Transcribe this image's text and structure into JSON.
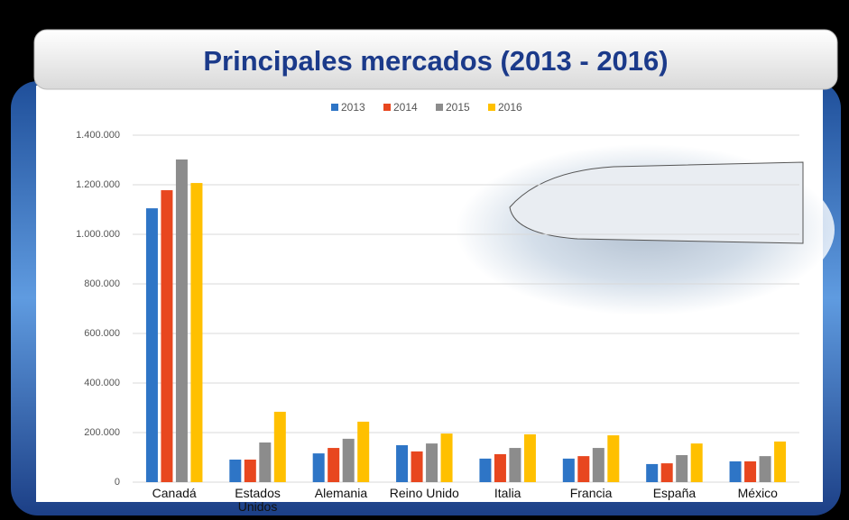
{
  "chart_data": {
    "type": "bar",
    "title": "Principales mercados (2013 - 2016)",
    "categories": [
      "Canadá",
      "Estados Unidos",
      "Alemania",
      "Reino Unido",
      "Italia",
      "Francia",
      "España",
      "México"
    ],
    "series": [
      {
        "name": "2013",
        "color": "#2e75c6",
        "values": [
          1105000,
          91000,
          116000,
          149000,
          95000,
          95000,
          73000,
          84000
        ]
      },
      {
        "name": "2014",
        "color": "#e8471f",
        "values": [
          1178000,
          91000,
          138000,
          124000,
          113000,
          105000,
          76000,
          84000
        ]
      },
      {
        "name": "2015",
        "color": "#8c8c8c",
        "values": [
          1302000,
          160000,
          175000,
          156000,
          138000,
          138000,
          109000,
          105000
        ]
      },
      {
        "name": "2016",
        "color": "#ffc000",
        "values": [
          1207000,
          284000,
          244000,
          196000,
          193000,
          189000,
          156000,
          164000
        ]
      }
    ],
    "ylim": [
      0,
      1400000
    ],
    "yticks": [
      0,
      {
        "value": 200000,
        "label": "200.000"
      },
      {
        "value": 400000,
        "label": "400.000"
      },
      {
        "value": 600000,
        "label": "600.000"
      },
      {
        "value": 800000,
        "label": "800.000"
      },
      {
        "value": 1000000,
        "label": "1.000.000"
      },
      {
        "value": 1200000,
        "label": "1.200.000"
      },
      {
        "value": 1400000,
        "label": "1.400.000"
      }
    ],
    "grid": true,
    "legend": "top"
  }
}
